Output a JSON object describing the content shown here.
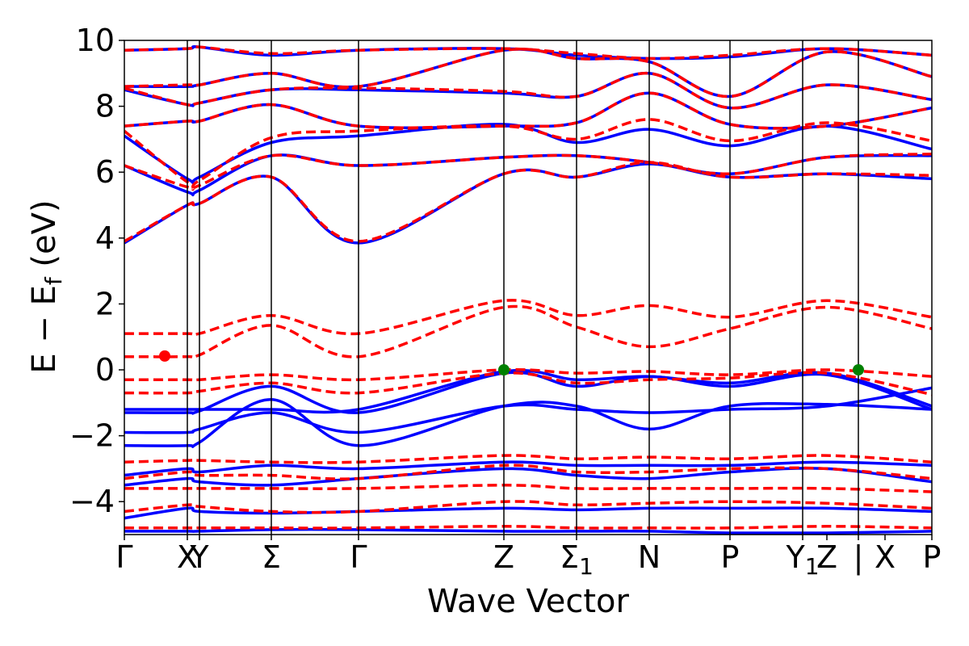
{
  "chart_data": {
    "type": "line",
    "title": "",
    "xlabel": "Wave Vector",
    "ylabel": "E − Ef (eV)",
    "ylabel_main": "E − E",
    "ylabel_sub": "f",
    "ylabel_unit": " (eV)",
    "ylim": [
      -5,
      10
    ],
    "yticks": [
      -4,
      -2,
      0,
      2,
      4,
      6,
      8,
      10
    ],
    "ytick_labels": [
      "−4",
      "−2",
      "0",
      "2",
      "4",
      "6",
      "8",
      "10"
    ],
    "xlim": [
      0,
      10.0
    ],
    "kpoints": [
      {
        "label": "Γ",
        "x": 0.0
      },
      {
        "label": "X",
        "x": 0.78
      },
      {
        "label": "Y",
        "x": 0.93
      },
      {
        "label": "Σ",
        "x": 1.82
      },
      {
        "label": "Γ",
        "x": 2.9
      },
      {
        "label": "Z",
        "x": 4.7
      },
      {
        "label": "Σ",
        "sub": "1",
        "x": 5.6
      },
      {
        "label": "N",
        "x": 6.5
      },
      {
        "label": "P",
        "x": 7.5
      },
      {
        "label": "Y",
        "sub": "1",
        "x": 8.4
      },
      {
        "label": "Z",
        "x": 8.7
      },
      {
        "label": "|",
        "x": 9.09
      },
      {
        "label": "X",
        "x": 9.42
      },
      {
        "label": "P",
        "x": 10.0
      }
    ],
    "vlines": [
      0.78,
      0.93,
      1.82,
      2.9,
      4.7,
      5.6,
      6.5,
      7.5,
      8.4,
      9.09
    ],
    "grid": false,
    "legend": "none",
    "colors": {
      "series_a": "#0000ff",
      "series_b": "#ff0000",
      "marker_vbm": "#008000",
      "marker_point": "#ff0000"
    },
    "series": [
      {
        "style": "solid",
        "color": "#0000ff",
        "bands": [
          [
            -4.9,
            -4.9,
            -4.9,
            -4.85,
            -4.85,
            -4.9,
            -4.9,
            -4.9,
            -4.95,
            -4.95,
            -4.9
          ],
          [
            -4.5,
            -4.2,
            -4.3,
            -4.35,
            -4.3,
            -4.2,
            -4.25,
            -4.2,
            -4.2,
            -4.2,
            -4.3
          ],
          [
            -3.5,
            -3.3,
            -3.4,
            -3.5,
            -3.3,
            -3.0,
            -3.2,
            -3.3,
            -3.1,
            -3.0,
            -3.4
          ],
          [
            -3.2,
            -3.0,
            -3.1,
            -2.9,
            -3.0,
            -2.8,
            -2.9,
            -2.9,
            -2.9,
            -2.8,
            -2.9
          ],
          [
            -2.3,
            -2.3,
            -2.2,
            -0.9,
            -2.3,
            -1.1,
            -1.1,
            -1.8,
            -1.1,
            -1.05,
            -1.2
          ],
          [
            -1.9,
            -1.9,
            -1.8,
            -1.3,
            -1.9,
            -1.1,
            -1.2,
            -1.3,
            -1.2,
            -1.1,
            -0.55
          ],
          [
            -1.3,
            -1.3,
            -1.25,
            -0.5,
            -1.3,
            -0.1,
            -0.5,
            -0.2,
            -0.5,
            -0.15,
            -1.2
          ],
          [
            -1.2,
            -1.2,
            -1.2,
            -1.2,
            -1.2,
            -0.05,
            -0.3,
            -0.2,
            -0.4,
            -0.1,
            -1.1
          ],
          [
            3.85,
            5.0,
            5.05,
            5.85,
            3.85,
            5.95,
            5.85,
            6.25,
            5.85,
            5.95,
            5.8
          ],
          [
            6.2,
            5.4,
            5.45,
            6.5,
            6.2,
            6.45,
            6.5,
            6.3,
            5.95,
            6.45,
            6.5
          ],
          [
            7.1,
            5.8,
            5.85,
            6.9,
            7.1,
            7.45,
            6.9,
            7.3,
            6.8,
            7.4,
            6.7
          ],
          [
            7.4,
            7.55,
            7.55,
            8.05,
            7.4,
            7.4,
            7.5,
            8.4,
            7.45,
            7.4,
            7.95
          ],
          [
            8.5,
            8.05,
            8.1,
            8.5,
            8.5,
            8.4,
            8.3,
            9.0,
            7.95,
            8.65,
            8.2
          ],
          [
            8.6,
            8.6,
            8.65,
            9.0,
            8.6,
            9.7,
            9.45,
            9.35,
            8.3,
            9.65,
            8.9
          ],
          [
            9.7,
            9.75,
            9.8,
            9.55,
            9.7,
            9.75,
            9.55,
            9.45,
            9.5,
            9.75,
            9.55
          ]
        ]
      },
      {
        "style": "dashed",
        "color": "#ff0000",
        "bands": [
          [
            -4.8,
            -4.8,
            -4.8,
            -4.8,
            -4.8,
            -4.75,
            -4.8,
            -4.8,
            -4.8,
            -4.75,
            -4.8
          ],
          [
            -4.3,
            -4.1,
            -4.15,
            -4.3,
            -4.3,
            -4.0,
            -4.1,
            -4.05,
            -4.0,
            -4.05,
            -4.2
          ],
          [
            -3.6,
            -3.6,
            -3.6,
            -3.6,
            -3.6,
            -3.5,
            -3.6,
            -3.6,
            -3.6,
            -3.6,
            -3.7
          ],
          [
            -3.3,
            -3.1,
            -3.2,
            -3.2,
            -3.3,
            -2.9,
            -3.1,
            -3.1,
            -3.0,
            -3.0,
            -3.3
          ],
          [
            -2.8,
            -2.75,
            -2.75,
            -2.8,
            -2.8,
            -2.6,
            -2.7,
            -2.65,
            -2.7,
            -2.6,
            -2.8
          ],
          [
            -0.7,
            -0.7,
            -0.65,
            -0.4,
            -0.7,
            -0.1,
            -0.4,
            -0.3,
            -0.25,
            -0.1,
            -0.75
          ],
          [
            -0.3,
            -0.3,
            -0.3,
            -0.15,
            -0.3,
            0.0,
            -0.1,
            -0.05,
            -0.15,
            0.0,
            -0.2
          ],
          [
            0.4,
            0.4,
            0.45,
            1.35,
            0.4,
            1.9,
            1.3,
            0.7,
            1.25,
            1.9,
            1.25
          ],
          [
            1.1,
            1.1,
            1.1,
            1.65,
            1.1,
            2.1,
            1.65,
            1.95,
            1.6,
            2.1,
            1.6
          ],
          [
            3.9,
            5.0,
            5.05,
            5.85,
            3.9,
            5.95,
            5.85,
            6.3,
            5.85,
            5.95,
            5.9
          ],
          [
            6.2,
            5.55,
            5.6,
            6.5,
            6.2,
            6.45,
            6.5,
            6.3,
            5.95,
            6.45,
            6.55
          ],
          [
            7.25,
            5.7,
            5.75,
            7.05,
            7.25,
            7.4,
            7.0,
            7.6,
            6.95,
            7.5,
            6.95
          ],
          [
            7.4,
            7.55,
            7.55,
            8.05,
            7.4,
            7.4,
            7.5,
            8.4,
            7.45,
            7.4,
            7.95
          ],
          [
            8.55,
            8.05,
            8.1,
            8.5,
            8.55,
            8.45,
            8.3,
            9.0,
            7.95,
            8.65,
            8.2
          ],
          [
            8.6,
            8.65,
            8.65,
            9.0,
            8.6,
            9.7,
            9.45,
            9.35,
            8.3,
            9.65,
            8.9
          ],
          [
            9.7,
            9.75,
            9.8,
            9.6,
            9.7,
            9.75,
            9.6,
            9.45,
            9.55,
            9.75,
            9.55
          ]
        ]
      }
    ],
    "markers": [
      {
        "x": 0.5,
        "y": 0.42,
        "color": "#ff0000"
      },
      {
        "x": 4.7,
        "y": 0.0,
        "color": "#008000"
      },
      {
        "x": 9.09,
        "y": 0.0,
        "color": "#008000"
      }
    ]
  }
}
